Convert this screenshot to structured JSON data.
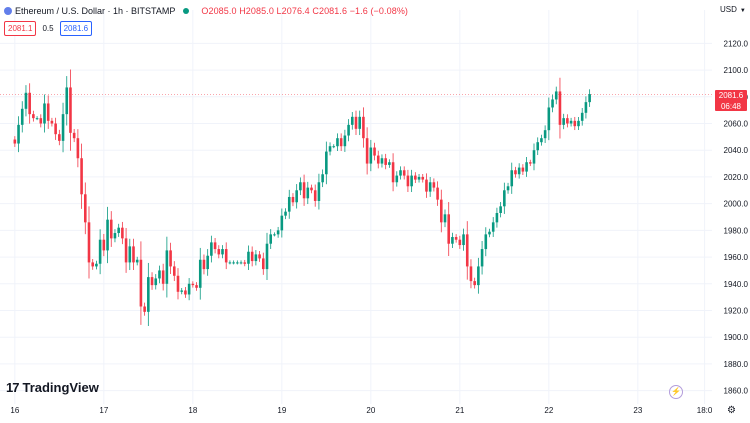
{
  "header": {
    "title": "Ethereum / U.S. Dollar · 1h · BITSTAMP",
    "ohlc": "O2085.0  H2085.0  L2076.4  C2081.6  −1.6 (−0.08%)"
  },
  "trade": {
    "sell_price": "2081.1",
    "spread": "0.5",
    "buy_price": "2081.6"
  },
  "currency": "USD",
  "last_price": {
    "price": "2081.6",
    "countdown": "06:48"
  },
  "branding": {
    "logo_mark": "17",
    "logo_text": "TradingView"
  },
  "colors": {
    "up": "#089981",
    "down": "#f23645",
    "accent": "#2962ff",
    "grid": "#f0f3fa"
  },
  "icons": {
    "status_dot": "green-dot-icon",
    "replay": "lightning-icon",
    "settings": "gear-icon"
  },
  "chart_data": {
    "type": "candlestick",
    "ylim": [
      1850,
      2130
    ],
    "y_ticks": [
      1860,
      1880,
      1900,
      1920,
      1940,
      1960,
      1980,
      2000,
      2020,
      2040,
      2060,
      2080,
      2100,
      2120
    ],
    "y_tick_labels": [
      "1860.0",
      "1880.0",
      "1900.0",
      "1920.0",
      "1940.0",
      "1960.0",
      "1980.0",
      "2000.0",
      "2020.0",
      "2040.0",
      "2060.0",
      "2080.0",
      "2100.0",
      "2120.0"
    ],
    "x_tick_labels": [
      "16",
      "17",
      "18",
      "19",
      "20",
      "21",
      "22",
      "23",
      "18:0"
    ],
    "x_tick_hours": [
      0,
      24,
      48,
      72,
      96,
      120,
      144,
      168,
      186
    ],
    "x_range_hours": [
      -4,
      188
    ],
    "last_price": 2081.6,
    "closes": [
      2045,
      2059,
      2071,
      2083,
      2067,
      2064,
      2064,
      2060,
      2075,
      2062,
      2060,
      2052,
      2047,
      2067,
      2087,
      2053,
      2049,
      2034,
      2007,
      1986,
      1956,
      1953,
      1955,
      1973,
      1965,
      1988,
      1974,
      1978,
      1982,
      1974,
      1956,
      1968,
      1956,
      1958,
      1923,
      1919,
      1945,
      1939,
      1944,
      1950,
      1940,
      1965,
      1953,
      1946,
      1934,
      1935,
      1932,
      1940,
      1939,
      1937,
      1958,
      1951,
      1961,
      1971,
      1966,
      1962,
      1966,
      1956,
      1956,
      1956,
      1956,
      1956,
      1955,
      1964,
      1957,
      1962,
      1959,
      1951,
      1970,
      1977,
      1977,
      1980,
      1991,
      1994,
      2005,
      2001,
      2010,
      2016,
      2004,
      2012,
      2010,
      2002,
      2016,
      2022,
      2039,
      2043,
      2043,
      2049,
      2043,
      2051,
      2059,
      2065,
      2056,
      2065,
      2049,
      2030,
      2042,
      2036,
      2030,
      2034,
      2029,
      2031,
      2016,
      2021,
      2025,
      2021,
      2013,
      2021,
      2018,
      2020,
      2018,
      2009,
      2016,
      2012,
      2003,
      1986,
      1992,
      1970,
      1975,
      1973,
      1969,
      1977,
      1953,
      1942,
      1939,
      1953,
      1966,
      1977,
      1979,
      1986,
      1993,
      1998,
      2010,
      2013,
      2025,
      2022,
      2027,
      2024,
      2031,
      2030,
      2040,
      2046,
      2049,
      2055,
      2072,
      2078,
      2084,
      2059,
      2064,
      2060,
      2062,
      2058,
      2062,
      2068,
      2076,
      2082
    ]
  }
}
